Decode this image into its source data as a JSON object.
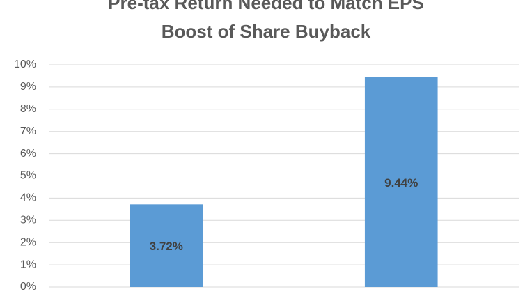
{
  "chart_data": {
    "type": "bar",
    "title": [
      "Pre-tax Return Needed to Match EPS",
      "Boost of Share Buyback"
    ],
    "categories": [
      null,
      null
    ],
    "values": [
      3.72,
      9.44
    ],
    "value_labels": [
      "3.72%",
      "9.44%"
    ],
    "color": "#5b9bd5",
    "ylim": [
      0,
      10
    ],
    "yticks": [
      {
        "value": 0,
        "label": "0%"
      },
      {
        "value": 1,
        "label": "1%"
      },
      {
        "value": 2,
        "label": "2%"
      },
      {
        "value": 3,
        "label": "3%"
      },
      {
        "value": 4,
        "label": "4%"
      },
      {
        "value": 5,
        "label": "5%"
      },
      {
        "value": 6,
        "label": "6%"
      },
      {
        "value": 7,
        "label": "7%"
      },
      {
        "value": 8,
        "label": "8%"
      },
      {
        "value": 9,
        "label": "9%"
      },
      {
        "value": 10,
        "label": "10%"
      }
    ],
    "grid": true
  }
}
